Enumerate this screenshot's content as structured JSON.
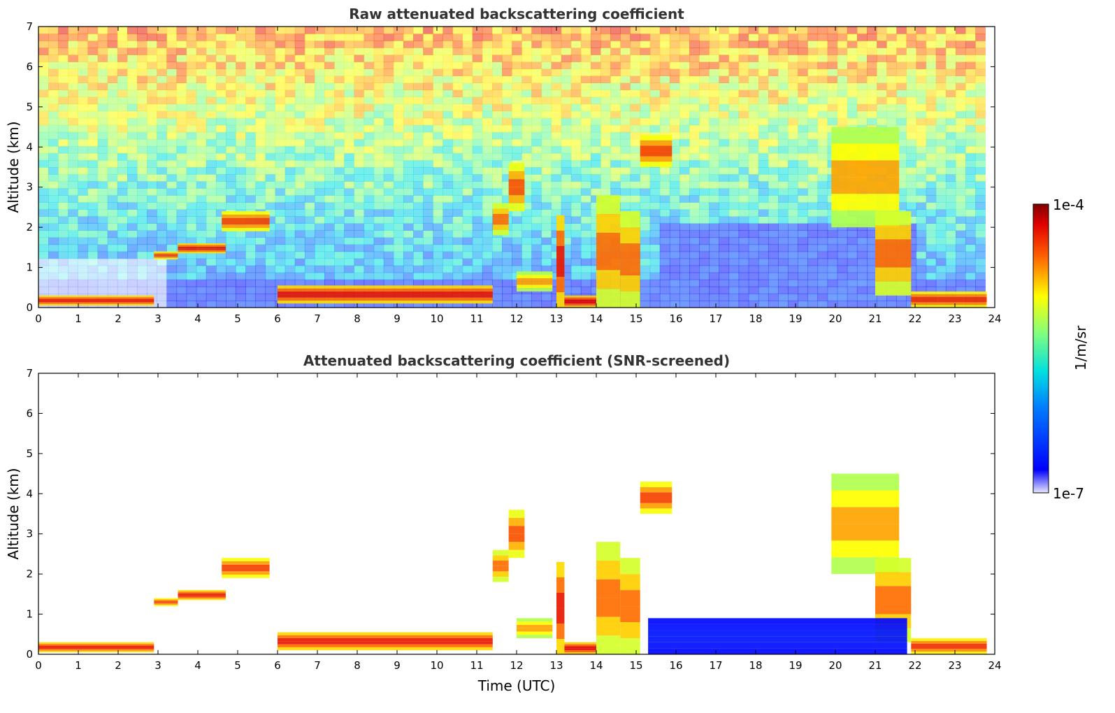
{
  "chart_data": [
    {
      "type": "heatmap",
      "title": "Raw attenuated backscattering coefficient",
      "xlabel": "",
      "ylabel": "Altitude (km)",
      "xlim": [
        0,
        24
      ],
      "ylim": [
        0,
        7
      ],
      "xticks": [
        "0",
        "1",
        "2",
        "3",
        "4",
        "5",
        "6",
        "7",
        "8",
        "9",
        "10",
        "11",
        "12",
        "13",
        "14",
        "15",
        "16",
        "17",
        "18",
        "19",
        "20",
        "21",
        "22",
        "23",
        "24"
      ],
      "yticks": [
        "0",
        "1",
        "2",
        "3",
        "4",
        "5",
        "6",
        "7"
      ],
      "screened": false,
      "features": [
        {
          "t0": 0.0,
          "t1": 2.9,
          "h0": 0.05,
          "h1": 0.3,
          "level": 0.95
        },
        {
          "t0": 2.9,
          "t1": 3.5,
          "h0": 1.2,
          "h1": 1.4,
          "level": 0.9
        },
        {
          "t0": 3.5,
          "t1": 4.7,
          "h0": 1.35,
          "h1": 1.6,
          "level": 0.95
        },
        {
          "t0": 4.6,
          "t1": 5.8,
          "h0": 1.9,
          "h1": 2.4,
          "level": 0.9
        },
        {
          "t0": 6.0,
          "t1": 11.4,
          "h0": 0.1,
          "h1": 0.55,
          "level": 0.95
        },
        {
          "t0": 11.4,
          "t1": 11.8,
          "h0": 1.8,
          "h1": 2.6,
          "level": 0.85
        },
        {
          "t0": 11.8,
          "t1": 12.2,
          "h0": 2.4,
          "h1": 3.6,
          "level": 0.88
        },
        {
          "t0": 12.0,
          "t1": 12.9,
          "h0": 0.4,
          "h1": 0.9,
          "level": 0.8
        },
        {
          "t0": 13.0,
          "t1": 13.2,
          "h0": 0.0,
          "h1": 2.3,
          "level": 0.95
        },
        {
          "t0": 13.2,
          "t1": 14.0,
          "h0": 0.0,
          "h1": 0.3,
          "level": 0.97
        },
        {
          "t0": 14.0,
          "t1": 14.6,
          "h0": 0.0,
          "h1": 2.8,
          "level": 0.85
        },
        {
          "t0": 14.6,
          "t1": 15.1,
          "h0": 0.0,
          "h1": 2.4,
          "level": 0.85
        },
        {
          "t0": 15.1,
          "t1": 15.9,
          "h0": 3.5,
          "h1": 4.3,
          "level": 0.9
        },
        {
          "t0": 19.9,
          "t1": 21.6,
          "h0": 2.0,
          "h1": 4.5,
          "level": 0.8
        },
        {
          "t0": 21.0,
          "t1": 21.9,
          "h0": 0.3,
          "h1": 2.4,
          "level": 0.85
        },
        {
          "t0": 21.9,
          "t1": 23.8,
          "h0": 0.0,
          "h1": 0.4,
          "level": 0.92
        }
      ]
    },
    {
      "type": "heatmap",
      "title": "Attenuated backscattering coefficient (SNR-screened)",
      "xlabel": "Time (UTC)",
      "ylabel": "Altitude (km)",
      "xlim": [
        0,
        24
      ],
      "ylim": [
        0,
        7
      ],
      "xticks": [
        "0",
        "1",
        "2",
        "3",
        "4",
        "5",
        "6",
        "7",
        "8",
        "9",
        "10",
        "11",
        "12",
        "13",
        "14",
        "15",
        "16",
        "17",
        "18",
        "19",
        "20",
        "21",
        "22",
        "23",
        "24"
      ],
      "yticks": [
        "0",
        "1",
        "2",
        "3",
        "4",
        "5",
        "6",
        "7"
      ],
      "screened": true,
      "features": [
        {
          "t0": 0.0,
          "t1": 2.9,
          "h0": 0.05,
          "h1": 0.3,
          "level": 0.95
        },
        {
          "t0": 2.9,
          "t1": 3.5,
          "h0": 1.2,
          "h1": 1.4,
          "level": 0.9
        },
        {
          "t0": 3.5,
          "t1": 4.7,
          "h0": 1.35,
          "h1": 1.6,
          "level": 0.95
        },
        {
          "t0": 4.6,
          "t1": 5.8,
          "h0": 1.9,
          "h1": 2.4,
          "level": 0.9
        },
        {
          "t0": 6.0,
          "t1": 11.4,
          "h0": 0.1,
          "h1": 0.55,
          "level": 0.95
        },
        {
          "t0": 11.4,
          "t1": 11.8,
          "h0": 1.8,
          "h1": 2.6,
          "level": 0.85
        },
        {
          "t0": 11.8,
          "t1": 12.2,
          "h0": 2.4,
          "h1": 3.6,
          "level": 0.88
        },
        {
          "t0": 12.0,
          "t1": 12.9,
          "h0": 0.4,
          "h1": 0.9,
          "level": 0.8
        },
        {
          "t0": 13.0,
          "t1": 13.2,
          "h0": 0.0,
          "h1": 2.3,
          "level": 0.95
        },
        {
          "t0": 13.2,
          "t1": 14.0,
          "h0": 0.0,
          "h1": 0.3,
          "level": 0.97
        },
        {
          "t0": 14.0,
          "t1": 14.6,
          "h0": 0.0,
          "h1": 2.8,
          "level": 0.85
        },
        {
          "t0": 14.6,
          "t1": 15.1,
          "h0": 0.0,
          "h1": 2.4,
          "level": 0.85
        },
        {
          "t0": 15.1,
          "t1": 15.9,
          "h0": 3.5,
          "h1": 4.3,
          "level": 0.9
        },
        {
          "t0": 19.9,
          "t1": 21.6,
          "h0": 2.0,
          "h1": 4.5,
          "level": 0.8
        },
        {
          "t0": 21.0,
          "t1": 21.9,
          "h0": 0.3,
          "h1": 2.4,
          "level": 0.85
        },
        {
          "t0": 21.9,
          "t1": 23.8,
          "h0": 0.0,
          "h1": 0.4,
          "level": 0.92
        },
        {
          "t0": 15.3,
          "t1": 21.8,
          "h0": 0.0,
          "h1": 0.9,
          "level": 0.12
        }
      ]
    }
  ],
  "colorbar": {
    "label": "1/m/sr",
    "min_label": "1e-7",
    "max_label": "1e-4",
    "colormap": "jet"
  },
  "colors": {
    "title": "#333333",
    "background": "#ffffff",
    "cloud_core": "#8b0000",
    "boundary_layer": "#0000ff",
    "background_noise": "#ffff66"
  }
}
